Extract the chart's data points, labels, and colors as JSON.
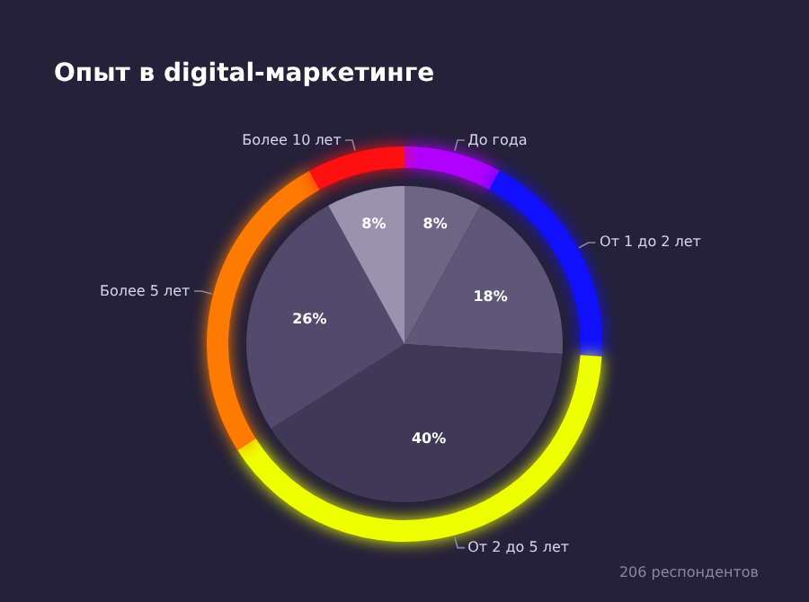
{
  "chart_data": {
    "type": "pie",
    "title": "Опыт в digital-маркетинге",
    "categories": [
      "До года",
      "От 1 до 2 лет",
      "От 2 до 5 лет",
      "Более 5 лет",
      "Более 10 лет"
    ],
    "values": [
      8,
      18,
      40,
      26,
      8
    ],
    "value_labels": [
      "8%",
      "18%",
      "40%",
      "26%",
      "8%"
    ],
    "colors": [
      "#6e6585",
      "#5f5777",
      "#3f3957",
      "#514a6a",
      "#9b92b0"
    ],
    "legend": false,
    "annotations": [
      "206 респондентов"
    ]
  }
}
